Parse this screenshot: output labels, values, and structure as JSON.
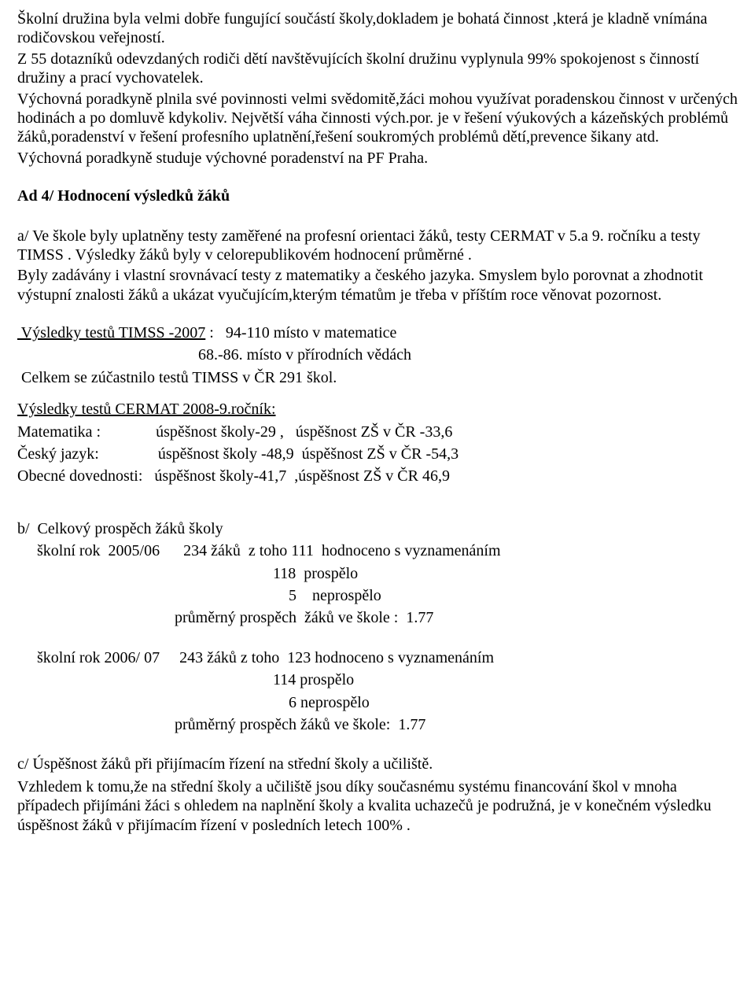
{
  "intro": {
    "p1": "Školní družina byla velmi dobře fungující součástí školy,dokladem je bohatá činnost ,která je kladně vnímána rodičovskou veřejností.",
    "p2": "Z 55 dotazníků odevzdaných rodiči dětí navštěvujících školní družinu vyplynula 99% spokojenost s činností družiny a prací vychovatelek.",
    "p3": "Výchovná poradkyně plnila své povinnosti velmi svědomitě,žáci mohou využívat poradenskou činnost v určených hodinách a po domluvě kdykoliv. Největší váha činnosti vých.por. je v řešení výukových a kázeňských problémů žáků,poradenství v řešení profesního uplatnění,řešení soukromých problémů dětí,prevence šikany atd.",
    "p4": "Výchovná poradkyně studuje výchovné poradenství na PF Praha."
  },
  "ad4": {
    "heading": "Ad 4/ Hodnocení výsledků žáků",
    "a_p1": "a/ Ve škole byly uplatněny testy zaměřené na profesní orientaci žáků, testy CERMAT  v 5.a 9. ročníku a testy TIMSS . Výsledky žáků byly v celorepublikovém hodnocení průměrné .",
    "a_p2": "Byly zadávány i vlastní srovnávací testy z matematiky a českého jazyka. Smyslem bylo porovnat a zhodnotit výstupní znalosti žáků a ukázat vyučujícím,kterým tématům je třeba v příštím roce věnovat pozornost."
  },
  "timss": {
    "line1_label": " Výsledky testů TIMSS -2007",
    "line1_rest": " :   94-110 místo v matematice",
    "line2": "                                              68.-86. místo v přírodních vědách",
    "line3": " Celkem se zúčastnilo testů TIMSS v ČR 291 škol."
  },
  "cermat": {
    "heading": "Výsledky testů CERMAT 2008-9.ročník:",
    "rows": [
      "Matematika :              úspěšnost školy-29 ,   úspěšnost ZŠ v ČR -33,6",
      "Český jazyk:               úspěšnost školy -48,9  úspěšnost ZŠ v ČR -54,3",
      "Obecné dovednosti:   úspěšnost školy-41,7  ,úspěšnost ZŠ v ČR 46,9"
    ]
  },
  "sectionB": {
    "line1": "b/  Celkový prospěch žáků školy",
    "year1": {
      "l1": "     školní rok  2005/06      234 žáků  z toho 111  hodnoceno s vyznamenáním",
      "l2": "                                                                 118  prospělo",
      "l3": "                                                                     5    neprospělo",
      "l4": "                                        průměrný prospěch  žáků ve škole :  1.77"
    },
    "year2": {
      "l1": "     školní rok 2006/ 07     243 žáků z toho  123 hodnoceno s vyznamenáním",
      "l2": "                                                                 114 prospělo",
      "l3": "                                                                     6 neprospělo",
      "l4": "                                        průměrný prospěch žáků ve škole:  1.77"
    }
  },
  "sectionC": {
    "line1": "c/ Úspěšnost žáků při přijímacím řízení na střední školy a učiliště.",
    "p1": "   Vzhledem k tomu,že na střední školy a učiliště jsou díky současnému systému financování škol v mnoha případech přijímáni žáci s ohledem na naplnění školy a kvalita uchazečů  je podružná, je v konečném výsledku úspěšnost žáků v přijímacím řízení v  posledních letech 100% ."
  }
}
